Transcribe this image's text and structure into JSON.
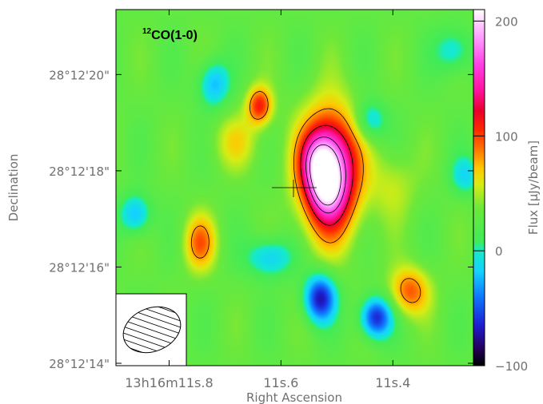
{
  "chart_data": {
    "type": "heatmap",
    "title": "12CO(1-0)",
    "title_parts": {
      "sup": "12",
      "text": "CO(1-0)"
    },
    "xlabel": "Right Ascension",
    "ylabel": "Declination",
    "colorbar_label": "Flux [μJy/beam]",
    "colorbar_ticks": [
      {
        "value": 200,
        "label": "200"
      },
      {
        "value": 100,
        "label": "100"
      },
      {
        "value": 0,
        "label": "0"
      },
      {
        "value": -100,
        "label": "−100"
      }
    ],
    "clim": [
      -100,
      210
    ],
    "x_ticks": [
      {
        "value": 11.8,
        "label": "13h16m11s.8"
      },
      {
        "value": 11.6,
        "label": "11s.6"
      },
      {
        "value": 11.4,
        "label": "11s.4"
      }
    ],
    "y_ticks": [
      {
        "value": 20,
        "label": "28°12'20\""
      },
      {
        "value": 18,
        "label": "28°12'18\""
      },
      {
        "value": 16,
        "label": "28°12'16\""
      },
      {
        "value": 14,
        "label": "28°12'14\""
      }
    ],
    "xlim": [
      11.895,
      11.256
    ],
    "ylim": [
      13.95,
      21.35
    ],
    "contour_levels": [
      80,
      120,
      160,
      190
    ],
    "sources": [
      {
        "x": 11.513,
        "y": 17.95,
        "peak": 175,
        "sx": 0.035,
        "sy": 0.85
      },
      {
        "x": 11.535,
        "y": 18.2,
        "peak": 55,
        "sx": 0.022,
        "sy": 0.4
      },
      {
        "x": 11.52,
        "y": 17.6,
        "peak": 40,
        "sx": 0.02,
        "sy": 0.35
      },
      {
        "x": 11.638,
        "y": 19.35,
        "peak": 80,
        "sx": 0.016,
        "sy": 0.28
      },
      {
        "x": 11.53,
        "y": 15.35,
        "peak": -100,
        "sx": 0.02,
        "sy": 0.35
      },
      {
        "x": 11.43,
        "y": 14.95,
        "peak": -95,
        "sx": 0.02,
        "sy": 0.3
      },
      {
        "x": 11.37,
        "y": 15.5,
        "peak": 65,
        "sx": 0.025,
        "sy": 0.35
      },
      {
        "x": 11.29,
        "y": 20.5,
        "peak": -40,
        "sx": 0.025,
        "sy": 0.35
      },
      {
        "x": 11.62,
        "y": 16.2,
        "peak": -50,
        "sx": 0.03,
        "sy": 0.3
      },
      {
        "x": 11.745,
        "y": 16.5,
        "peak": 60,
        "sx": 0.02,
        "sy": 0.4
      },
      {
        "x": 11.72,
        "y": 19.8,
        "peak": -55,
        "sx": 0.02,
        "sy": 0.35
      },
      {
        "x": 11.86,
        "y": 17.1,
        "peak": -55,
        "sx": 0.02,
        "sy": 0.3
      },
      {
        "x": 11.44,
        "y": 19.05,
        "peak": -45,
        "sx": 0.02,
        "sy": 0.3
      },
      {
        "x": 11.27,
        "y": 17.9,
        "peak": -40,
        "sx": 0.02,
        "sy": 0.3
      },
      {
        "x": 11.68,
        "y": 18.6,
        "peak": 30,
        "sx": 0.03,
        "sy": 0.4
      },
      {
        "x": 11.4,
        "y": 17.7,
        "peak": 25,
        "sx": 0.03,
        "sy": 0.5
      }
    ],
    "colormap": [
      [
        -100,
        "#000000"
      ],
      [
        -85,
        "#25005a"
      ],
      [
        -65,
        "#1e1ed2"
      ],
      [
        -40,
        "#0f78ff"
      ],
      [
        -18,
        "#14d2ff"
      ],
      [
        0,
        "#15ebc8"
      ],
      [
        8,
        "#3fec5a"
      ],
      [
        38,
        "#6fe83a"
      ],
      [
        58,
        "#d8ec14"
      ],
      [
        72,
        "#ffc800"
      ],
      [
        88,
        "#ff7800"
      ],
      [
        105,
        "#ff2a00"
      ],
      [
        122,
        "#e8002c"
      ],
      [
        140,
        "#ff14a0"
      ],
      [
        162,
        "#ff3fe6"
      ],
      [
        185,
        "#ff9aff"
      ],
      [
        210,
        "#ffffff"
      ]
    ]
  }
}
